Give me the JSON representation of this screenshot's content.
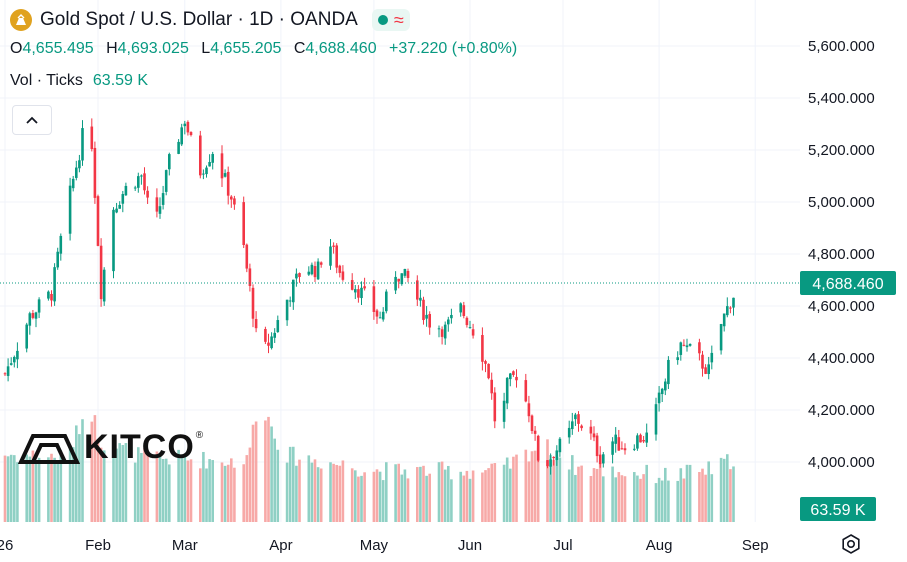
{
  "header": {
    "title": "Gold Spot",
    "sep1": "/",
    "quote": "U.S. Dollar",
    "interval": "1D",
    "source": "OANDA",
    "dot_sep": "·",
    "status_color": "#089981"
  },
  "ohlc": {
    "o_label": "O",
    "o": "4,655.495",
    "h_label": "H",
    "h": "4,693.025",
    "l_label": "L",
    "l": "4,655.205",
    "c_label": "C",
    "c": "4,688.460",
    "change": "+37.220 (+0.80%)"
  },
  "volume": {
    "label": "Vol · Ticks",
    "value": "63.59 K"
  },
  "watermark": "KITCO",
  "colors": {
    "up": "#089981",
    "down": "#f23645",
    "up_vol": "#8fd0c4",
    "down_vol": "#f7a9a7",
    "grid": "#f0f3fa"
  },
  "chart_data": {
    "type": "candlestick",
    "title": "Gold Spot / U.S. Dollar · 1D · OANDA",
    "y_ticks": [
      4000,
      4200,
      4400,
      4600,
      4800,
      5000,
      5200,
      5400,
      5600
    ],
    "y_tick_labels": [
      "4,000.000",
      "4,200.000",
      "4,400.000",
      "4,600.000",
      "4,800.000",
      "5,000.000",
      "5,200.000",
      "5,400.000",
      "5,600.000"
    ],
    "ylim": [
      3760,
      5660
    ],
    "x_labels": [
      {
        "label": "26",
        "day": 0
      },
      {
        "label": "Feb",
        "day": 30
      },
      {
        "label": "Mar",
        "day": 58
      },
      {
        "label": "Apr",
        "day": 89
      },
      {
        "label": "May",
        "day": 119
      },
      {
        "label": "Jun",
        "day": 150
      },
      {
        "label": "Jul",
        "day": 180
      },
      {
        "label": "Aug",
        "day": 211
      },
      {
        "label": "Sep",
        "day": 242
      }
    ],
    "last_price": 4688.46,
    "last_price_label": "4,688.460",
    "last_volume_label": "63.59 K",
    "volume_max": 100,
    "volume_anchors": [
      {
        "day": 0,
        "v": 50
      },
      {
        "day": 20,
        "v": 48
      },
      {
        "day": 27,
        "v": 88
      },
      {
        "day": 31,
        "v": 60
      },
      {
        "day": 45,
        "v": 48
      },
      {
        "day": 78,
        "v": 45
      },
      {
        "day": 82,
        "v": 92
      },
      {
        "day": 90,
        "v": 50
      },
      {
        "day": 120,
        "v": 38
      },
      {
        "day": 160,
        "v": 38
      },
      {
        "day": 173,
        "v": 58
      },
      {
        "day": 185,
        "v": 40
      },
      {
        "day": 215,
        "v": 34
      },
      {
        "day": 230,
        "v": 40
      },
      {
        "day": 238,
        "v": 52
      },
      {
        "day": 240,
        "v": 8
      }
    ],
    "price_anchors": [
      {
        "day": 0,
        "c": 4340
      },
      {
        "day": 8,
        "c": 4560
      },
      {
        "day": 15,
        "c": 4650
      },
      {
        "day": 19,
        "c": 4920
      },
      {
        "day": 25,
        "c": 5250
      },
      {
        "day": 27,
        "c": 5420
      },
      {
        "day": 29,
        "c": 5040
      },
      {
        "day": 31,
        "c": 4660
      },
      {
        "day": 35,
        "c": 4980
      },
      {
        "day": 40,
        "c": 5070
      },
      {
        "day": 44,
        "c": 5100
      },
      {
        "day": 48,
        "c": 4880
      },
      {
        "day": 53,
        "c": 5150
      },
      {
        "day": 58,
        "c": 5320
      },
      {
        "day": 60,
        "c": 5230
      },
      {
        "day": 63,
        "c": 5120
      },
      {
        "day": 67,
        "c": 5200
      },
      {
        "day": 73,
        "c": 5020
      },
      {
        "day": 77,
        "c": 4820
      },
      {
        "day": 80,
        "c": 4580
      },
      {
        "day": 82,
        "c": 4390
      },
      {
        "day": 86,
        "c": 4480
      },
      {
        "day": 90,
        "c": 4600
      },
      {
        "day": 96,
        "c": 4750
      },
      {
        "day": 101,
        "c": 4740
      },
      {
        "day": 104,
        "c": 4870
      },
      {
        "day": 108,
        "c": 4730
      },
      {
        "day": 113,
        "c": 4680
      },
      {
        "day": 117,
        "c": 4620
      },
      {
        "day": 121,
        "c": 4550
      },
      {
        "day": 126,
        "c": 4730
      },
      {
        "day": 130,
        "c": 4700
      },
      {
        "day": 134,
        "c": 4600
      },
      {
        "day": 137,
        "c": 4540
      },
      {
        "day": 142,
        "c": 4510
      },
      {
        "day": 147,
        "c": 4590
      },
      {
        "day": 152,
        "c": 4490
      },
      {
        "day": 156,
        "c": 4340
      },
      {
        "day": 159,
        "c": 4080
      },
      {
        "day": 162,
        "c": 4290
      },
      {
        "day": 165,
        "c": 4340
      },
      {
        "day": 169,
        "c": 4200
      },
      {
        "day": 173,
        "c": 3960
      },
      {
        "day": 177,
        "c": 4040
      },
      {
        "day": 181,
        "c": 4080
      },
      {
        "day": 184,
        "c": 4170
      },
      {
        "day": 188,
        "c": 4120
      },
      {
        "day": 192,
        "c": 4020
      },
      {
        "day": 196,
        "c": 4080
      },
      {
        "day": 200,
        "c": 4060
      },
      {
        "day": 204,
        "c": 4090
      },
      {
        "day": 208,
        "c": 4100
      },
      {
        "day": 211,
        "c": 4240
      },
      {
        "day": 214,
        "c": 4360
      },
      {
        "day": 218,
        "c": 4450
      },
      {
        "day": 222,
        "c": 4420
      },
      {
        "day": 227,
        "c": 4350
      },
      {
        "day": 231,
        "c": 4530
      },
      {
        "day": 234,
        "c": 4620
      },
      {
        "day": 237,
        "c": 4688.46
      }
    ]
  }
}
